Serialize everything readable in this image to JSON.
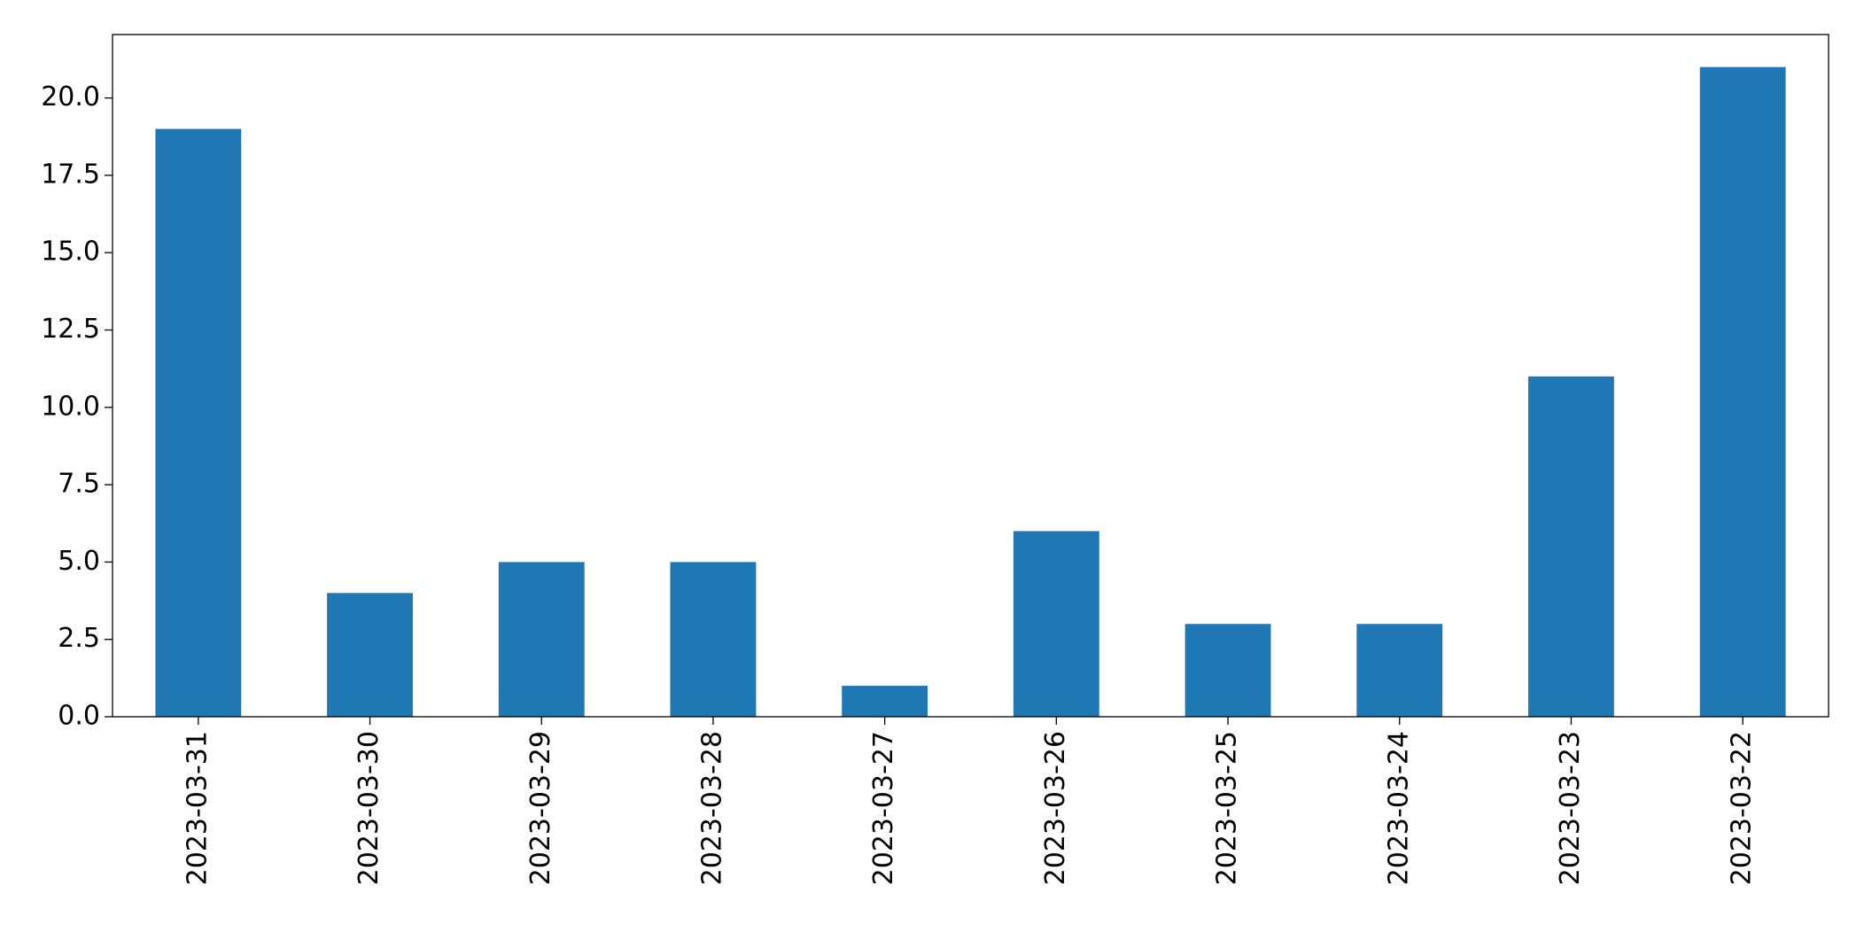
{
  "chart_data": {
    "type": "bar",
    "categories": [
      "2023-03-31",
      "2023-03-30",
      "2023-03-29",
      "2023-03-28",
      "2023-03-27",
      "2023-03-26",
      "2023-03-25",
      "2023-03-24",
      "2023-03-23",
      "2023-03-22"
    ],
    "values": [
      19,
      4,
      5,
      5,
      1,
      6,
      3,
      3,
      11,
      21
    ],
    "color": "#1f77b4",
    "ylim": [
      0,
      22.05
    ],
    "yticks": [
      {
        "value": 0,
        "label": "0.0"
      },
      2.5,
      {
        "value": 5,
        "label": "5.0"
      },
      7.5,
      {
        "value": 10,
        "label": "10.0"
      },
      12.5,
      {
        "value": 15,
        "label": "15.0"
      },
      17.5,
      {
        "value": 20,
        "label": "20.0"
      }
    ],
    "grid": false
  }
}
